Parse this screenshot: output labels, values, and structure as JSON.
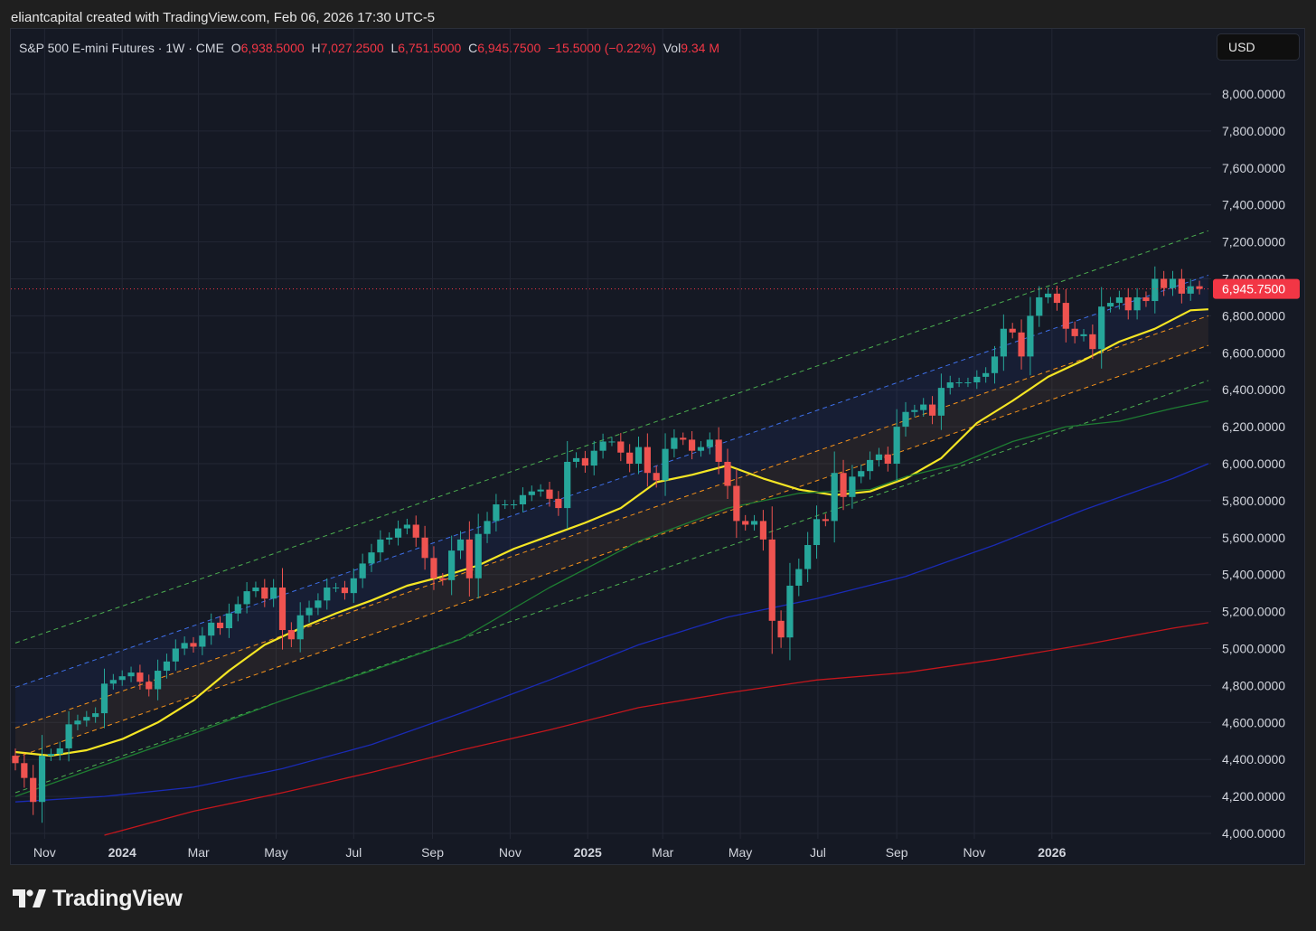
{
  "header": {
    "credit": "eliantcapital created with TradingView.com, Feb 06, 2026 17:30 UTC-5"
  },
  "legend": {
    "symbol": "S&P 500 E-mini Futures · 1W · CME",
    "o_label": "O",
    "o_value": "6,938.5000",
    "h_label": "H",
    "h_value": "7,027.2500",
    "l_label": "L",
    "l_value": "6,751.5000",
    "c_label": "C",
    "c_value": "6,945.7500",
    "change": "−15.5000 (−0.22%)",
    "vol_label": "Vol",
    "vol_value": "9.34 M"
  },
  "currency_button": "USD",
  "logo_text": "TradingView",
  "colors": {
    "background": "#151924",
    "up": "#26a69a",
    "down": "#ef5350",
    "ema_yellow": "#f5e624",
    "sma_green": "#1e7d32",
    "sma_blue": "#1a2bb5",
    "sma_red": "#c4161c",
    "channel_orange": "#f7931a",
    "channel_blue": "#3d6fe8",
    "channel_green": "#4caf50",
    "price_tag": "#f23645"
  },
  "chart_data": {
    "type": "candlestick",
    "interval": "1W",
    "ylim": [
      4000,
      8200
    ],
    "y_ticks": [
      4000,
      4200,
      4400,
      4600,
      4800,
      5000,
      5200,
      5400,
      5600,
      5800,
      6000,
      6200,
      6400,
      6600,
      6800,
      7000,
      7200,
      7400,
      7600,
      7800,
      8000
    ],
    "y_tick_labels": [
      "4,000.0000",
      "4,200.0000",
      "4,400.0000",
      "4,600.0000",
      "4,800.0000",
      "5,000.0000",
      "5,200.0000",
      "5,400.0000",
      "5,600.0000",
      "5,800.0000",
      "6,000.0000",
      "6,200.0000",
      "6,400.0000",
      "6,600.0000",
      "6,800.0000",
      "7,000.0000",
      "7,200.0000",
      "7,400.0000",
      "7,600.0000",
      "7,800.0000",
      "8,000.0000"
    ],
    "x_start_week": "2023-10-09",
    "x_ticks": [
      {
        "label": "Nov",
        "date": "2023-11-01",
        "bold": false
      },
      {
        "label": "2024",
        "date": "2024-01-01",
        "bold": true
      },
      {
        "label": "Mar",
        "date": "2024-03-01",
        "bold": false
      },
      {
        "label": "May",
        "date": "2024-05-01",
        "bold": false
      },
      {
        "label": "Jul",
        "date": "2024-07-01",
        "bold": false
      },
      {
        "label": "Sep",
        "date": "2024-09-01",
        "bold": false
      },
      {
        "label": "Nov",
        "date": "2024-11-01",
        "bold": false
      },
      {
        "label": "2025",
        "date": "2025-01-01",
        "bold": true
      },
      {
        "label": "Mar",
        "date": "2025-03-01",
        "bold": false
      },
      {
        "label": "May",
        "date": "2025-05-01",
        "bold": false
      },
      {
        "label": "Jul",
        "date": "2025-07-01",
        "bold": false
      },
      {
        "label": "Sep",
        "date": "2025-09-01",
        "bold": false
      },
      {
        "label": "Nov",
        "date": "2025-11-01",
        "bold": false
      },
      {
        "label": "2026",
        "date": "2026-01-01",
        "bold": true
      }
    ],
    "last_price": 6945.75,
    "last_price_label": "6,945.7500",
    "closes": [
      4380,
      4300,
      4170,
      4420,
      4430,
      4460,
      4590,
      4610,
      4630,
      4650,
      4810,
      4830,
      4850,
      4870,
      4820,
      4780,
      4880,
      4930,
      5000,
      5030,
      5010,
      5070,
      5140,
      5110,
      5190,
      5240,
      5310,
      5330,
      5270,
      5330,
      5100,
      5050,
      5180,
      5220,
      5260,
      5330,
      5330,
      5300,
      5380,
      5460,
      5520,
      5590,
      5600,
      5650,
      5670,
      5600,
      5490,
      5380,
      5370,
      5530,
      5590,
      5380,
      5620,
      5690,
      5780,
      5780,
      5780,
      5830,
      5850,
      5860,
      5810,
      5760,
      6010,
      6030,
      5990,
      6070,
      6120,
      6120,
      6060,
      6000,
      6090,
      5950,
      5910,
      6080,
      6140,
      6130,
      6070,
      6090,
      6130,
      6010,
      5880,
      5690,
      5670,
      5690,
      5590,
      5150,
      5060,
      5340,
      5430,
      5560,
      5700,
      5690,
      5950,
      5820,
      5930,
      5960,
      6020,
      6050,
      6000,
      6200,
      6280,
      6290,
      6320,
      6260,
      6410,
      6440,
      6440,
      6440,
      6470,
      6490,
      6580,
      6730,
      6710,
      6580,
      6800,
      6900,
      6920,
      6870,
      6730,
      6690,
      6700,
      6620,
      6850,
      6870,
      6900,
      6830,
      6900,
      6880,
      7000,
      6950,
      7000,
      6920,
      6960,
      6945.75
    ],
    "series": [
      {
        "name": "yellow EMA",
        "color": "#f5e624",
        "points": [
          [
            0,
            4440
          ],
          [
            4,
            4420
          ],
          [
            8,
            4450
          ],
          [
            12,
            4510
          ],
          [
            16,
            4600
          ],
          [
            20,
            4720
          ],
          [
            24,
            4880
          ],
          [
            28,
            5020
          ],
          [
            32,
            5110
          ],
          [
            36,
            5190
          ],
          [
            40,
            5260
          ],
          [
            44,
            5340
          ],
          [
            48,
            5390
          ],
          [
            52,
            5450
          ],
          [
            56,
            5540
          ],
          [
            60,
            5610
          ],
          [
            64,
            5680
          ],
          [
            68,
            5760
          ],
          [
            72,
            5900
          ],
          [
            76,
            5940
          ],
          [
            80,
            5990
          ],
          [
            84,
            5920
          ],
          [
            88,
            5860
          ],
          [
            92,
            5830
          ],
          [
            96,
            5850
          ],
          [
            100,
            5920
          ],
          [
            104,
            6030
          ],
          [
            108,
            6220
          ],
          [
            112,
            6340
          ],
          [
            116,
            6470
          ],
          [
            120,
            6560
          ],
          [
            124,
            6660
          ],
          [
            128,
            6730
          ],
          [
            132,
            6830
          ],
          [
            134,
            6835
          ]
        ]
      },
      {
        "name": "green SMA",
        "color": "#1e7d32",
        "points": [
          [
            0,
            4200
          ],
          [
            10,
            4370
          ],
          [
            20,
            4540
          ],
          [
            30,
            4720
          ],
          [
            40,
            4880
          ],
          [
            50,
            5050
          ],
          [
            60,
            5330
          ],
          [
            70,
            5580
          ],
          [
            80,
            5760
          ],
          [
            88,
            5840
          ],
          [
            96,
            5860
          ],
          [
            100,
            5930
          ],
          [
            106,
            6000
          ],
          [
            112,
            6120
          ],
          [
            118,
            6200
          ],
          [
            124,
            6230
          ],
          [
            130,
            6300
          ],
          [
            134,
            6340
          ]
        ]
      },
      {
        "name": "blue SMA",
        "color": "#1a2bb5",
        "points": [
          [
            0,
            4170
          ],
          [
            10,
            4200
          ],
          [
            20,
            4250
          ],
          [
            30,
            4350
          ],
          [
            40,
            4480
          ],
          [
            50,
            4650
          ],
          [
            60,
            4830
          ],
          [
            70,
            5020
          ],
          [
            80,
            5170
          ],
          [
            90,
            5270
          ],
          [
            100,
            5390
          ],
          [
            110,
            5560
          ],
          [
            120,
            5750
          ],
          [
            130,
            5920
          ],
          [
            134,
            6000
          ]
        ]
      },
      {
        "name": "red SMA",
        "color": "#c4161c",
        "points": [
          [
            10,
            3990
          ],
          [
            20,
            4120
          ],
          [
            30,
            4220
          ],
          [
            40,
            4330
          ],
          [
            50,
            4450
          ],
          [
            60,
            4560
          ],
          [
            70,
            4680
          ],
          [
            80,
            4760
          ],
          [
            90,
            4830
          ],
          [
            100,
            4870
          ],
          [
            110,
            4940
          ],
          [
            120,
            5020
          ],
          [
            130,
            5110
          ],
          [
            134,
            5140
          ]
        ]
      }
    ],
    "channel": {
      "center_start": [
        0,
        4410
      ],
      "center_end": [
        134,
        6640
      ],
      "offsets": [
        {
          "offset": 0,
          "color": "#f7931a"
        },
        {
          "offset": 160,
          "color": "#f7931a"
        },
        {
          "offset": 380,
          "color": "#3d6fe8"
        },
        {
          "offset": 620,
          "color": "#4caf50"
        },
        {
          "offset": -190,
          "color": "#4caf50"
        }
      ]
    }
  }
}
